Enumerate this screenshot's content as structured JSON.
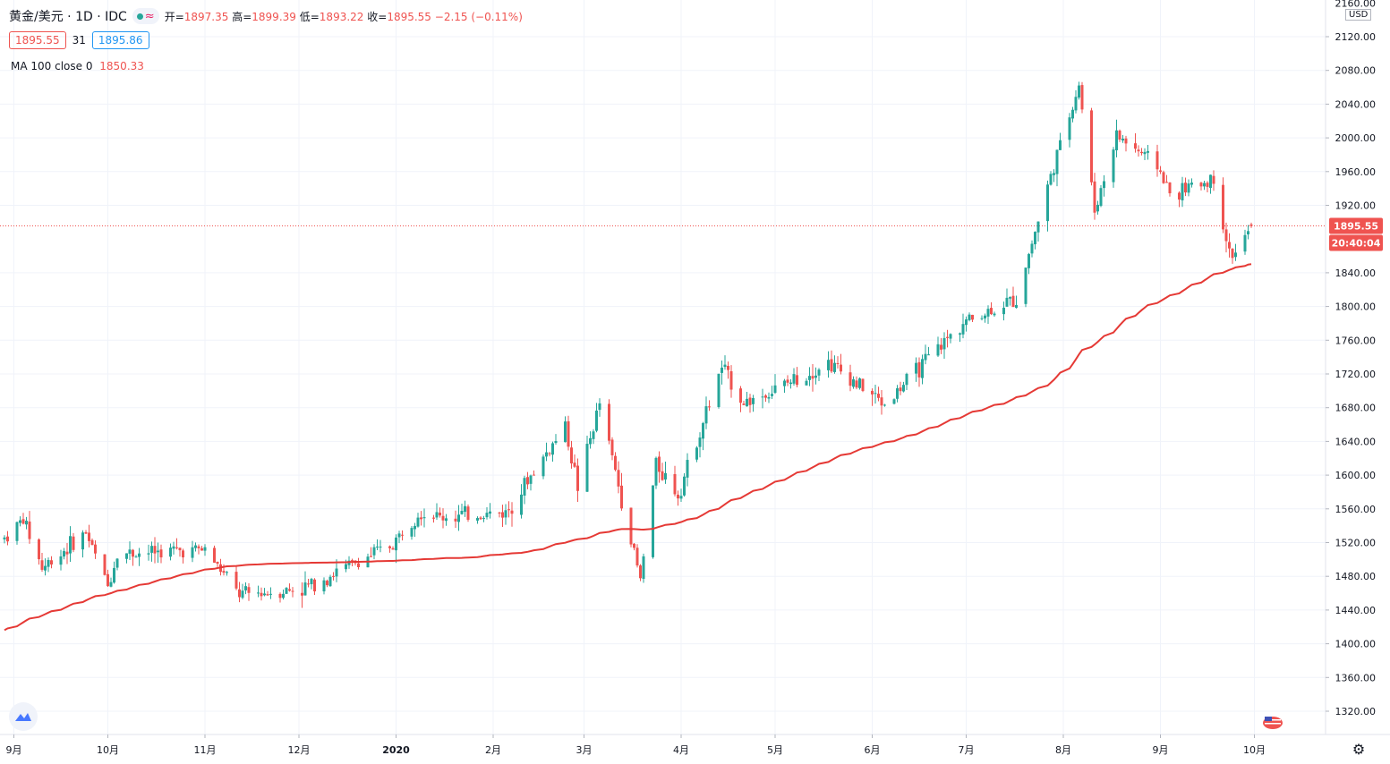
{
  "header": {
    "symbol": "黄金/美元 · 1D · IDC",
    "ohlc": {
      "open_label": "开=",
      "open": "1897.35",
      "high_label": "高=",
      "high": "1899.39",
      "low_label": "低=",
      "low": "1893.22",
      "close_label": "收=",
      "close": "1895.55",
      "change": "−2.15 (−0.11%)"
    },
    "bid": "1895.55",
    "spread": "31",
    "ask": "1895.86"
  },
  "indicator": {
    "label": "MA 100 close 0",
    "value": "1850.33"
  },
  "price_axis": {
    "currency": "USD",
    "top_label": "2160.00",
    "ticks": [
      "2120.00",
      "2080.00",
      "2040.00",
      "2000.00",
      "1960.00",
      "1920.00",
      "1840.00",
      "1800.00",
      "1760.00",
      "1720.00",
      "1680.00",
      "1640.00",
      "1600.00",
      "1560.00",
      "1520.00",
      "1480.00",
      "1440.00",
      "1400.00",
      "1360.00",
      "1320.00"
    ],
    "last_price_label": "1895.55",
    "countdown_label": "20:40:04"
  },
  "time_axis": {
    "labels": [
      "9月",
      "10月",
      "11月",
      "12月",
      "2020",
      "2月",
      "3月",
      "4月",
      "5月",
      "6月",
      "7月",
      "8月",
      "9月",
      "10月"
    ]
  },
  "colors": {
    "up": "#26a69a",
    "down": "#ef5350",
    "ma": "#e53935",
    "grid": "#f0f3fa",
    "price_line": "#ef5350"
  },
  "icons": {
    "logo": "tradingview-logo-icon",
    "settings": "gear-icon",
    "flag": "us-flag-icon"
  },
  "chart_data": {
    "type": "candlestick",
    "ylim": [
      1300,
      2160
    ],
    "grid": true,
    "ma_period": 100,
    "anchors": [
      {
        "d": "2019-08-29",
        "p": 1525
      },
      {
        "d": "2019-09-04",
        "p": 1548
      },
      {
        "d": "2019-09-10",
        "p": 1490
      },
      {
        "d": "2019-09-24",
        "p": 1532
      },
      {
        "d": "2019-10-01",
        "p": 1468
      },
      {
        "d": "2019-10-04",
        "p": 1507
      },
      {
        "d": "2019-11-01",
        "p": 1512
      },
      {
        "d": "2019-11-12",
        "p": 1458
      },
      {
        "d": "2019-12-02",
        "p": 1465
      },
      {
        "d": "2019-12-31",
        "p": 1518
      },
      {
        "d": "2020-01-08",
        "p": 1557
      },
      {
        "d": "2020-01-15",
        "p": 1550
      },
      {
        "d": "2020-02-05",
        "p": 1556
      },
      {
        "d": "2020-02-24",
        "p": 1658
      },
      {
        "d": "2020-02-28",
        "p": 1586
      },
      {
        "d": "2020-03-06",
        "p": 1685
      },
      {
        "d": "2020-03-19",
        "p": 1475
      },
      {
        "d": "2020-03-24",
        "p": 1614
      },
      {
        "d": "2020-03-31",
        "p": 1577
      },
      {
        "d": "2020-04-14",
        "p": 1728
      },
      {
        "d": "2020-04-21",
        "p": 1686
      },
      {
        "d": "2020-05-01",
        "p": 1701
      },
      {
        "d": "2020-05-18",
        "p": 1734
      },
      {
        "d": "2020-06-05",
        "p": 1684
      },
      {
        "d": "2020-06-30",
        "p": 1781
      },
      {
        "d": "2020-07-17",
        "p": 1809
      },
      {
        "d": "2020-07-27",
        "p": 1942
      },
      {
        "d": "2020-08-06",
        "p": 2064
      },
      {
        "d": "2020-08-11",
        "p": 1913
      },
      {
        "d": "2020-08-18",
        "p": 2003
      },
      {
        "d": "2020-08-31",
        "p": 1968
      },
      {
        "d": "2020-09-04",
        "p": 1933
      },
      {
        "d": "2020-09-18",
        "p": 1951
      },
      {
        "d": "2020-09-23",
        "p": 1863
      },
      {
        "d": "2020-09-25",
        "p": 1862
      },
      {
        "d": "2020-09-30",
        "p": 1895.55
      }
    ],
    "last_candle": {
      "o": 1897.35,
      "h": 1899.39,
      "l": 1893.22,
      "c": 1895.55
    },
    "ma_last": 1850.33
  }
}
